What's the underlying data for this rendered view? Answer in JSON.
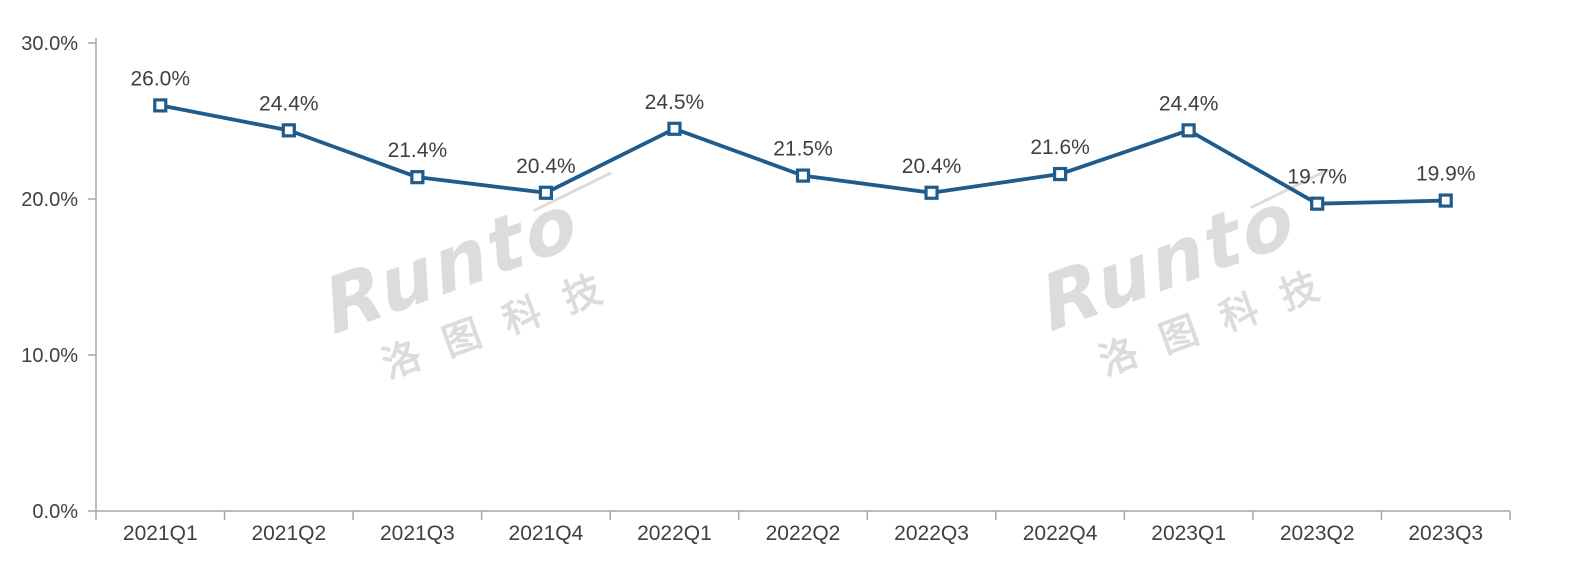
{
  "chart_data": {
    "type": "line",
    "title": "",
    "xlabel": "",
    "ylabel": "",
    "categories": [
      "2021Q1",
      "2021Q2",
      "2021Q3",
      "2021Q4",
      "2022Q1",
      "2022Q2",
      "2022Q3",
      "2022Q4",
      "2023Q1",
      "2023Q2",
      "2023Q3"
    ],
    "values": [
      26.0,
      24.4,
      21.4,
      20.4,
      24.5,
      21.5,
      20.4,
      21.6,
      24.4,
      19.7,
      19.9
    ],
    "data_labels": [
      "26.0%",
      "24.4%",
      "21.4%",
      "20.4%",
      "24.5%",
      "21.5%",
      "20.4%",
      "21.6%",
      "24.4%",
      "19.7%",
      "19.9%"
    ],
    "ylim": [
      0,
      30
    ],
    "y_tick_values": [
      30,
      20,
      10,
      0
    ],
    "y_tick_labels": [
      "30.0%",
      "20.0%",
      "10.0%",
      "0.0%"
    ],
    "grid": false,
    "legend": "none",
    "colors": {
      "line": "#1F5C8C",
      "marker_fill": "#FFFFFF",
      "axis": "#A6A6A6",
      "tick_text": "#404040",
      "label_text": "#404040"
    }
  },
  "watermark": {
    "brand": "Runto",
    "cjk": "洛图科技",
    "color": "#DCDCDC"
  }
}
